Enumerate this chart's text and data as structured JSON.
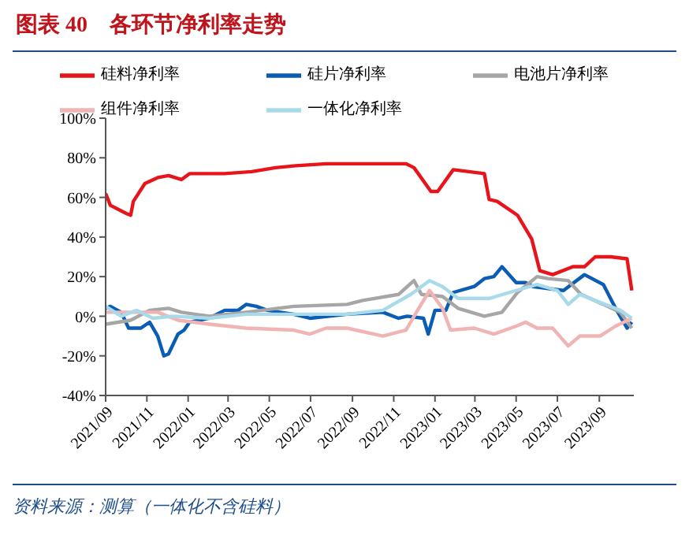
{
  "chart_data": {
    "type": "line",
    "title": "图表 40　各环节净利率走势",
    "annotations": [
      "资料来源：测算（一体化不含硅料）"
    ],
    "xlim": [
      "2021-09-01",
      "2023-10-22"
    ],
    "xticks": [
      {
        "value": "2021-09",
        "label": "2021/09"
      },
      {
        "value": "2021-11",
        "label": "2021/11"
      },
      {
        "value": "2022-01",
        "label": "2022/01"
      },
      {
        "value": "2022-03",
        "label": "2022/03"
      },
      {
        "value": "2022-05",
        "label": "2022/05"
      },
      {
        "value": "2022-07",
        "label": "2022/07"
      },
      {
        "value": "2022-09",
        "label": "2022/09"
      },
      {
        "value": "2022-11",
        "label": "2022/11"
      },
      {
        "value": "2023-01",
        "label": "2023/01"
      },
      {
        "value": "2023-03",
        "label": "2023/03"
      },
      {
        "value": "2023-05",
        "label": "2023/05"
      },
      {
        "value": "2023-07",
        "label": "2023/07"
      },
      {
        "value": "2023-09",
        "label": "2023/09"
      }
    ],
    "ylim": [
      -40,
      100
    ],
    "yticks": [
      {
        "value": -40,
        "label": "-40%"
      },
      {
        "value": -20,
        "label": "-20%"
      },
      {
        "value": 0,
        "label": "0%"
      },
      {
        "value": 20,
        "label": "20%"
      },
      {
        "value": 40,
        "label": "40%"
      },
      {
        "value": 60,
        "label": "60%"
      },
      {
        "value": 80,
        "label": "80%"
      },
      {
        "value": 100,
        "label": "100%"
      }
    ],
    "legend": "top",
    "marker": "none",
    "line_style": "solid",
    "series": [
      {
        "name": "硅料净利率",
        "color": "#e8141c",
        "x": [
          "2021-09-01",
          "2021-09-08",
          "2021-10-01",
          "2021-10-08",
          "2021-10-12",
          "2021-10-29",
          "2021-11-17",
          "2021-12-03",
          "2021-12-22",
          "2022-01-03",
          "2022-02-24",
          "2022-04-05",
          "2022-05-10",
          "2022-06-09",
          "2022-07-24",
          "2022-08-24",
          "2022-11-19",
          "2022-12-01",
          "2022-12-26",
          "2023-01-05",
          "2023-01-28",
          "2023-03-15",
          "2023-03-22",
          "2023-04-03",
          "2023-05-03",
          "2023-05-24",
          "2023-06-05",
          "2023-06-24",
          "2023-07-24",
          "2023-08-10",
          "2023-08-26",
          "2023-09-18",
          "2023-10-12",
          "2023-10-19"
        ],
        "values": [
          62,
          56,
          52,
          51,
          58,
          67,
          70,
          71,
          69,
          72,
          72,
          73,
          75,
          76,
          77,
          77,
          77,
          75,
          63,
          63,
          74,
          72,
          59,
          58,
          51,
          39,
          23,
          21,
          25,
          25,
          30,
          30,
          29,
          13
        ]
      },
      {
        "name": "硅片净利率",
        "color": "#0a5cb4",
        "x": [
          "2021-09-01",
          "2021-09-08",
          "2021-09-24",
          "2021-10-05",
          "2021-10-23",
          "2021-11-05",
          "2021-11-17",
          "2021-11-26",
          "2021-12-03",
          "2021-12-17",
          "2021-12-26",
          "2022-01-03",
          "2022-02-01",
          "2022-02-24",
          "2022-03-16",
          "2022-03-28",
          "2022-04-12",
          "2022-04-28",
          "2022-06-06",
          "2022-06-30",
          "2022-08-24",
          "2022-10-16",
          "2022-11-08",
          "2022-11-21",
          "2022-12-15",
          "2022-12-22",
          "2023-01-01",
          "2023-01-17",
          "2023-01-28",
          "2023-02-28",
          "2023-03-15",
          "2023-03-29",
          "2023-04-10",
          "2023-05-01",
          "2023-05-15",
          "2023-05-26",
          "2023-07-10",
          "2023-08-10",
          "2023-09-07",
          "2023-09-25",
          "2023-10-12",
          "2023-10-19"
        ],
        "values": [
          4,
          5,
          2,
          -6,
          -6,
          -3,
          -10,
          -20,
          -19,
          -9,
          -7,
          -3,
          -1,
          3,
          3,
          6,
          5,
          3,
          1,
          -1,
          1,
          2,
          -1,
          0,
          -1,
          -9,
          3,
          3,
          12,
          15,
          19,
          20,
          25,
          17,
          17,
          15,
          13,
          21,
          16,
          4,
          -6,
          -3
        ]
      },
      {
        "name": "电池片净利率",
        "color": "#a6a6a6",
        "x": [
          "2021-09-01",
          "2021-10-08",
          "2021-11-05",
          "2021-12-03",
          "2021-12-22",
          "2022-02-01",
          "2022-03-28",
          "2022-06-06",
          "2022-08-24",
          "2022-09-16",
          "2022-11-08",
          "2022-12-01",
          "2022-12-12",
          "2023-01-12",
          "2023-02-04",
          "2023-03-15",
          "2023-04-10",
          "2023-05-03",
          "2023-06-01",
          "2023-06-17",
          "2023-07-17",
          "2023-08-05",
          "2023-09-07",
          "2023-10-02",
          "2023-10-19"
        ],
        "values": [
          -4,
          -2,
          3,
          4,
          2,
          0,
          2,
          5,
          6,
          8,
          11,
          18,
          11,
          10,
          4,
          0,
          2,
          12,
          20,
          19,
          18,
          11,
          6,
          2,
          -6
        ]
      },
      {
        "name": "组件净利率",
        "color": "#f0b4b4",
        "x": [
          "2021-09-01",
          "2021-10-08",
          "2021-11-17",
          "2021-12-17",
          "2022-02-01",
          "2022-03-28",
          "2022-06-06",
          "2022-06-30",
          "2022-07-24",
          "2022-08-24",
          "2022-10-16",
          "2022-11-19",
          "2022-12-08",
          "2022-12-24",
          "2023-01-12",
          "2023-01-24",
          "2023-02-28",
          "2023-03-29",
          "2023-05-01",
          "2023-05-15",
          "2023-06-01",
          "2023-06-24",
          "2023-07-17",
          "2023-08-03",
          "2023-09-02",
          "2023-09-25",
          "2023-10-19"
        ],
        "values": [
          2,
          2,
          2,
          -2,
          -4,
          -6,
          -7,
          -9,
          -6,
          -6,
          -10,
          -7,
          4,
          13,
          4,
          -7,
          -6,
          -9,
          -5,
          -3,
          -6,
          -6,
          -15,
          -10,
          -10,
          -5,
          -1
        ]
      },
      {
        "name": "一体化净利率",
        "color": "#a9daea",
        "x": [
          "2021-09-01",
          "2021-09-24",
          "2021-10-17",
          "2021-11-10",
          "2021-12-10",
          "2022-02-01",
          "2022-03-28",
          "2022-06-06",
          "2022-08-24",
          "2022-10-16",
          "2022-11-26",
          "2022-12-24",
          "2023-01-12",
          "2023-02-04",
          "2023-03-22",
          "2023-05-01",
          "2023-06-01",
          "2023-07-01",
          "2023-07-17",
          "2023-08-03",
          "2023-09-02",
          "2023-10-02",
          "2023-10-19"
        ],
        "values": [
          5,
          0,
          3,
          -1,
          0,
          -1,
          1,
          1,
          1,
          3,
          11,
          18,
          15,
          9,
          9,
          13,
          16,
          13,
          6,
          11,
          7,
          3,
          -1
        ]
      }
    ]
  }
}
